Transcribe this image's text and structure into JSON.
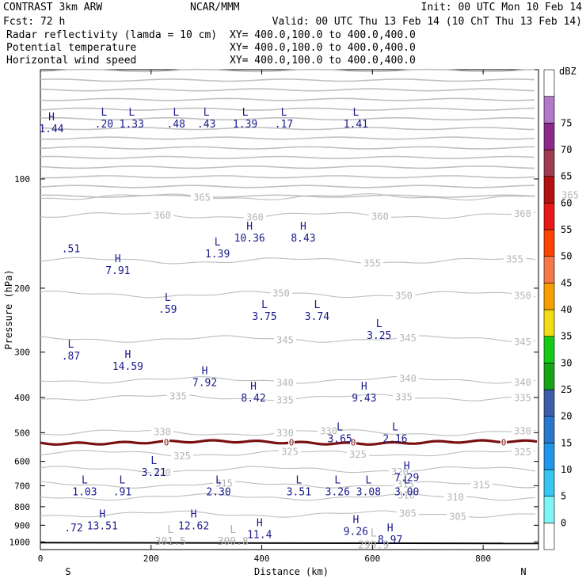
{
  "header": {
    "left1": "CONTRAST  3km ARW",
    "center1": "NCAR/MMM",
    "right1": "Init: 00 UTC Mon 10 Feb 14",
    "left2": "Fcst:    72 h",
    "right2": "Valid: 00 UTC Thu 13 Feb 14 (10 ChT Thu 13 Feb 14)"
  },
  "legend": [
    {
      "name": "Radar reflectivity (lamda = 10 cm)",
      "xy": "XY= 400.0,100.0 to 400.0,400.0",
      "color": "#000000"
    },
    {
      "name": "Potential temperature",
      "xy": "XY= 400.0,100.0 to 400.0,400.0",
      "color": "#bbbbbb"
    },
    {
      "name": "Horizontal wind speed",
      "xy": "XY= 400.0,100.0 to 400.0,400.0",
      "color": "#1a1a8c"
    }
  ],
  "chart_data": {
    "type": "contour_cross_section",
    "x_axis": {
      "label": "Distance (km)",
      "range": [
        0,
        900
      ],
      "ticks": [
        0,
        200,
        400,
        600,
        800
      ],
      "left_end": "S",
      "right_end": "N"
    },
    "y_axis": {
      "label": "Pressure (hPa)",
      "range": [
        50,
        1050
      ],
      "scale": "log",
      "ticks": [
        100,
        200,
        300,
        400,
        500,
        600,
        700,
        800,
        900,
        1000
      ]
    },
    "colorbar": {
      "unit": "dBZ",
      "levels": [
        0,
        5,
        10,
        15,
        20,
        25,
        30,
        35,
        40,
        45,
        50,
        55,
        60,
        65,
        70,
        75
      ],
      "colors": [
        "#ffffff",
        "#7ff5f5",
        "#36c6f0",
        "#2096e8",
        "#2a78cc",
        "#3c5ea8",
        "#17a517",
        "#15cc15",
        "#f2dc14",
        "#f5a000",
        "#f57848",
        "#ff4400",
        "#e81818",
        "#b41010",
        "#a03c50",
        "#8c2a8c",
        "#b478c8",
        "#ffffff"
      ]
    },
    "theta_contours": [
      {
        "value": 365,
        "p": 112,
        "labels": [
          [
            255,
            365
          ],
          [
            720,
            365
          ]
        ]
      },
      {
        "value": 360,
        "p": 126,
        "labels": [
          [
            205,
            360
          ],
          [
            322,
            360
          ],
          [
            480,
            360
          ],
          [
            660,
            360
          ]
        ]
      },
      {
        "value": 355,
        "p": 168,
        "labels": [
          [
            470,
            355
          ],
          [
            650,
            355
          ]
        ]
      },
      {
        "value": 350,
        "p": 208,
        "labels": [
          [
            355,
            350
          ],
          [
            510,
            350
          ],
          [
            660,
            350
          ]
        ]
      },
      {
        "value": 345,
        "p": 276,
        "labels": [
          [
            360,
            345
          ],
          [
            515,
            345
          ],
          [
            660,
            345
          ]
        ]
      },
      {
        "value": 340,
        "p": 358,
        "labels": [
          [
            360,
            340
          ],
          [
            515,
            340
          ],
          [
            660,
            340
          ]
        ]
      },
      {
        "value": 335,
        "p": 400,
        "labels": [
          [
            225,
            335
          ],
          [
            360,
            335
          ],
          [
            510,
            335
          ],
          [
            660,
            335
          ]
        ]
      },
      {
        "value": 330,
        "p": 500,
        "labels": [
          [
            205,
            330
          ],
          [
            360,
            330
          ],
          [
            415,
            330
          ],
          [
            660,
            330
          ]
        ]
      },
      {
        "value": 325,
        "p": 570,
        "labels": [
          [
            230,
            325
          ],
          [
            366,
            325
          ],
          [
            452,
            325
          ],
          [
            660,
            325
          ]
        ]
      },
      {
        "value": 320,
        "p": 632,
        "labels": [
          [
            205,
            320
          ],
          [
            505,
            320
          ]
        ]
      },
      {
        "value": 315,
        "p": 696,
        "labels": [
          [
            283,
            315
          ],
          [
            512,
            315
          ],
          [
            608,
            315
          ]
        ]
      },
      {
        "value": 310,
        "p": 752,
        "labels": [
          [
            513,
            310
          ],
          [
            575,
            310
          ]
        ]
      },
      {
        "value": 305,
        "p": 838,
        "labels": [
          [
            515,
            305
          ],
          [
            578,
            305
          ]
        ]
      }
    ],
    "reflectivity_0dBZ_contour": {
      "p": 532,
      "labels": [
        [
          210,
          "0"
        ],
        [
          368,
          "0"
        ],
        [
          446,
          "0"
        ],
        [
          636,
          "0"
        ]
      ]
    },
    "wind_extrema": [
      {
        "x": 20,
        "p": 70,
        "label": "H",
        "value": "1.44"
      },
      {
        "x": 115,
        "p": 68,
        "label": "L",
        "value": ".20"
      },
      {
        "x": 165,
        "p": 68,
        "label": "L",
        "value": "1.33"
      },
      {
        "x": 245,
        "p": 68,
        "label": "L",
        "value": ".48"
      },
      {
        "x": 300,
        "p": 68,
        "label": "L",
        "value": ".43"
      },
      {
        "x": 370,
        "p": 68,
        "label": "L",
        "value": "1.39"
      },
      {
        "x": 440,
        "p": 68,
        "label": "L",
        "value": ".17"
      },
      {
        "x": 570,
        "p": 68,
        "label": "L",
        "value": "1.41"
      },
      {
        "x": 55,
        "p": 150,
        "label": "",
        "value": ".51"
      },
      {
        "x": 140,
        "p": 172,
        "label": "H",
        "value": "7.91"
      },
      {
        "x": 320,
        "p": 155,
        "label": "L",
        "value": "1.39"
      },
      {
        "x": 378,
        "p": 140,
        "label": "H",
        "value": "10.36"
      },
      {
        "x": 475,
        "p": 140,
        "label": "H",
        "value": "8.43"
      },
      {
        "x": 230,
        "p": 220,
        "label": "L",
        "value": ".59"
      },
      {
        "x": 405,
        "p": 230,
        "label": "L",
        "value": "3.75"
      },
      {
        "x": 500,
        "p": 230,
        "label": "L",
        "value": "3.74"
      },
      {
        "x": 612,
        "p": 260,
        "label": "L",
        "value": "3.25"
      },
      {
        "x": 55,
        "p": 296,
        "label": "L",
        "value": ".87"
      },
      {
        "x": 158,
        "p": 316,
        "label": "H",
        "value": "14.59"
      },
      {
        "x": 297,
        "p": 350,
        "label": "H",
        "value": "7.92"
      },
      {
        "x": 385,
        "p": 386,
        "label": "H",
        "value": "8.42"
      },
      {
        "x": 585,
        "p": 386,
        "label": "H",
        "value": "9.43"
      },
      {
        "x": 541,
        "p": 500,
        "label": "L",
        "value": "3.65"
      },
      {
        "x": 641,
        "p": 500,
        "label": "L",
        "value": "2.16"
      },
      {
        "x": 205,
        "p": 620,
        "label": "L",
        "value": "3.21"
      },
      {
        "x": 662,
        "p": 640,
        "label": "H",
        "value": "7.29"
      },
      {
        "x": 80,
        "p": 700,
        "label": "L",
        "value": "1.03"
      },
      {
        "x": 148,
        "p": 700,
        "label": "L",
        "value": ".91"
      },
      {
        "x": 322,
        "p": 700,
        "label": "L",
        "value": "2.30"
      },
      {
        "x": 467,
        "p": 700,
        "label": "L",
        "value": "3.51"
      },
      {
        "x": 537,
        "p": 700,
        "label": "L",
        "value": "3.26"
      },
      {
        "x": 593,
        "p": 700,
        "label": "L",
        "value": "3.08"
      },
      {
        "x": 662,
        "p": 700,
        "label": "L",
        "value": "3.00"
      },
      {
        "x": 112,
        "p": 870,
        "label": "H",
        "value": "13.51"
      },
      {
        "x": 277,
        "p": 870,
        "label": "H",
        "value": "12.62"
      },
      {
        "x": 60,
        "p": 880,
        "label": "",
        "value": ".72"
      },
      {
        "x": 396,
        "p": 920,
        "label": "H",
        "value": "11.4"
      },
      {
        "x": 570,
        "p": 900,
        "label": "H",
        "value": "9.26"
      },
      {
        "x": 632,
        "p": 950,
        "label": "H",
        "value": "8.97"
      }
    ],
    "theta_extrema": [
      {
        "x": 235,
        "p": 960,
        "label": "L",
        "value": "301.5"
      },
      {
        "x": 348,
        "p": 960,
        "label": "L",
        "value": "300.8"
      },
      {
        "x": 602,
        "p": 980,
        "label": "L",
        "value": "299.9"
      }
    ]
  }
}
